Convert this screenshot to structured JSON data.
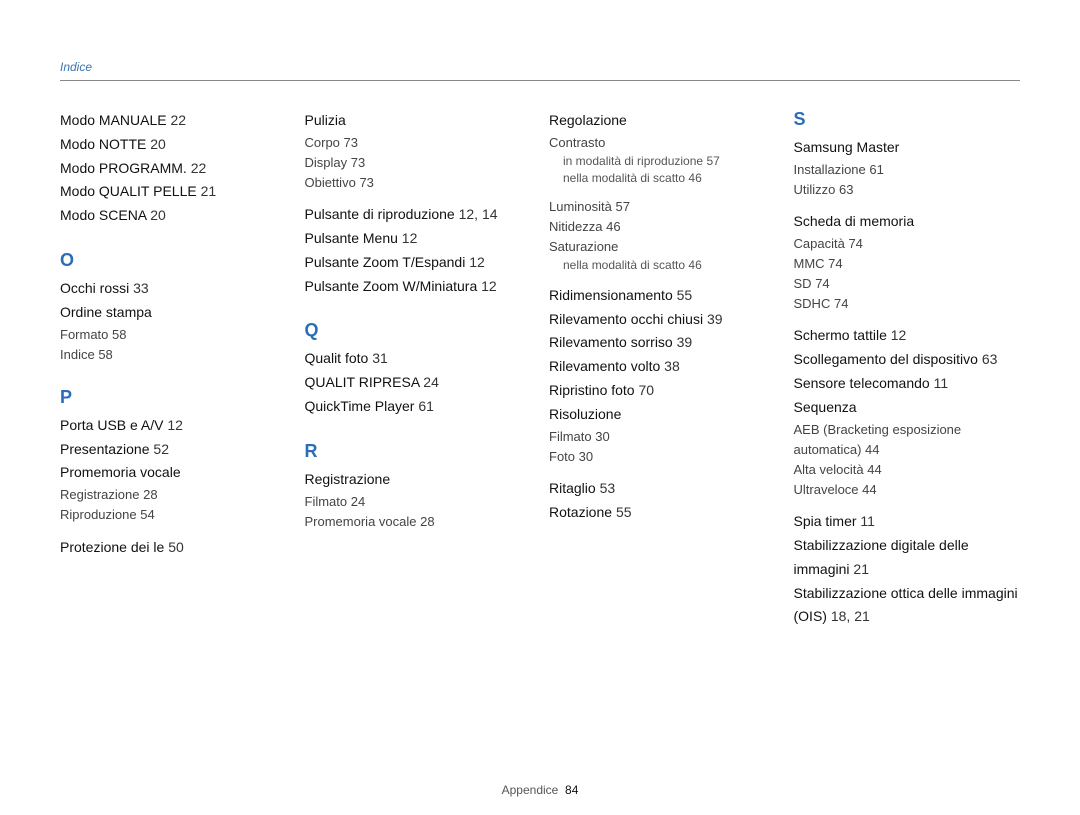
{
  "header": {
    "label": "Indice"
  },
  "footer": {
    "label": "Appendice",
    "page": "84"
  },
  "col1": {
    "m_entries": [
      {
        "label": "Modo MANUALE",
        "page": "22"
      },
      {
        "label": "Modo NOTTE",
        "page": "20"
      },
      {
        "label": "Modo PROGRAMM.",
        "page": "22"
      },
      {
        "label": "Modo QUALIT  PELLE",
        "page": "21"
      },
      {
        "label": "Modo SCENA",
        "page": "20"
      }
    ],
    "o_header": "O",
    "o_entry1": {
      "label": "Occhi rossi",
      "page": "33"
    },
    "o_entry2": {
      "label": "Ordine stampa"
    },
    "o_sub": [
      {
        "label": "Formato",
        "page": "58"
      },
      {
        "label": "Indice",
        "page": "58"
      }
    ],
    "p_header": "P",
    "p_entries": [
      {
        "label": "Porta USB e A/V",
        "page": "12"
      },
      {
        "label": "Presentazione",
        "page": "52"
      }
    ],
    "p_entry3": {
      "label": "Promemoria vocale"
    },
    "p_sub": [
      {
        "label": "Registrazione",
        "page": "28"
      },
      {
        "label": "Riproduzione",
        "page": "54"
      }
    ],
    "p_entry4": {
      "label": "Protezione dei  le",
      "page": "50"
    }
  },
  "col2": {
    "pulizia": {
      "label": "Pulizia"
    },
    "pulizia_sub": [
      {
        "label": "Corpo",
        "page": "73"
      },
      {
        "label": "Display",
        "page": "73"
      },
      {
        "label": "Obiettivo",
        "page": "73"
      }
    ],
    "p_more": [
      {
        "label": "Pulsante di riproduzione",
        "page": "12, 14"
      },
      {
        "label": "Pulsante Menu",
        "page": "12"
      },
      {
        "label": "Pulsante Zoom T/Espandi",
        "page": "12"
      },
      {
        "label": "Pulsante Zoom W/Miniatura",
        "page": "12"
      }
    ],
    "q_header": "Q",
    "q_entries": [
      {
        "label": "Qualit  foto",
        "page": "31"
      },
      {
        "label": "QUALIT  RIPRESA",
        "page": "24"
      },
      {
        "label": "QuickTime Player",
        "page": "61"
      }
    ],
    "r_header": "R",
    "r_entry": {
      "label": "Registrazione"
    },
    "r_sub": [
      {
        "label": "Filmato",
        "page": "24"
      },
      {
        "label": "Promemoria vocale",
        "page": "28"
      }
    ]
  },
  "col3": {
    "regolazione": {
      "label": "Regolazione"
    },
    "reg_sub1": {
      "label": "Contrasto"
    },
    "reg_subsub1": [
      {
        "label": "in modalità di riproduzione",
        "page": "57"
      },
      {
        "label": "nella modalità di scatto",
        "page": "46"
      }
    ],
    "reg_sub_rest": [
      {
        "label": "Luminosità",
        "page": "57"
      },
      {
        "label": "Nitidezza",
        "page": "46"
      }
    ],
    "reg_sub_sat": {
      "label": "Saturazione"
    },
    "reg_subsub2": [
      {
        "label": "nella modalità di scatto",
        "page": "46"
      }
    ],
    "r_entries": [
      {
        "label": "Ridimensionamento",
        "page": "55"
      },
      {
        "label": "Rilevamento occhi chiusi",
        "page": "39"
      },
      {
        "label": "Rilevamento sorriso",
        "page": "39"
      },
      {
        "label": "Rilevamento volto",
        "page": "38"
      },
      {
        "label": "Ripristino foto",
        "page": "70"
      }
    ],
    "ris": {
      "label": "Risoluzione"
    },
    "ris_sub": [
      {
        "label": "Filmato",
        "page": "30"
      },
      {
        "label": "Foto",
        "page": "30"
      }
    ],
    "r_tail": [
      {
        "label": "Ritaglio",
        "page": "53"
      },
      {
        "label": "Rotazione",
        "page": "55"
      }
    ]
  },
  "col4": {
    "s_header": "S",
    "sm": {
      "label": "Samsung Master"
    },
    "sm_sub": [
      {
        "label": "Installazione",
        "page": "61"
      },
      {
        "label": "Utilizzo",
        "page": "63"
      }
    ],
    "scheda": {
      "label": "Scheda di memoria"
    },
    "scheda_sub": [
      {
        "label": "Capacità",
        "page": "74"
      },
      {
        "label": "MMC",
        "page": "74"
      },
      {
        "label": "SD",
        "page": "74"
      },
      {
        "label": "SDHC",
        "page": "74"
      }
    ],
    "s_entries1": [
      {
        "label": "Schermo tattile",
        "page": "12"
      },
      {
        "label": "Scollegamento del dispositivo",
        "page": "63"
      },
      {
        "label": "Sensore telecomando",
        "page": "11"
      }
    ],
    "seq": {
      "label": "Sequenza"
    },
    "seq_sub": [
      {
        "label": "AEB (Bracketing esposizione automatica)",
        "page": "44"
      },
      {
        "label": "Alta velocità",
        "page": "44"
      },
      {
        "label": "Ultraveloce",
        "page": "44"
      }
    ],
    "s_entries2": [
      {
        "label": "Spia timer",
        "page": "11"
      },
      {
        "label": "Stabilizzazione digitale delle immagini",
        "page": "21"
      },
      {
        "label": "Stabilizzazione ottica delle immagini (OIS)",
        "page": "18, 21"
      }
    ]
  }
}
